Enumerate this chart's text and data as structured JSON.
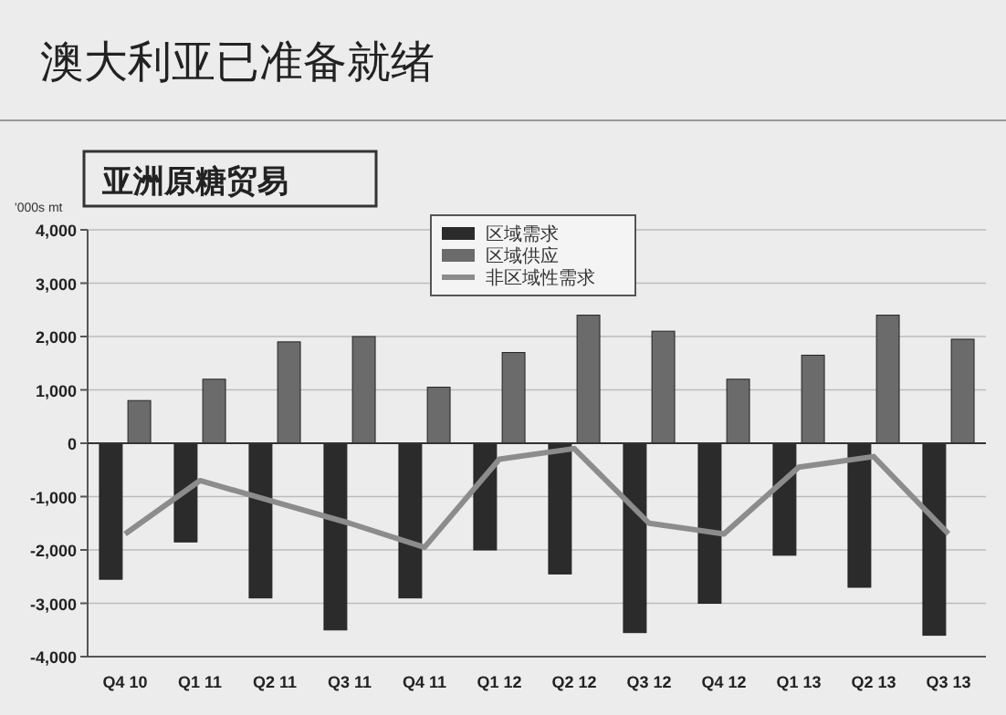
{
  "chart_data": {
    "type": "bar",
    "title": "澳大利亚已准备就绪",
    "subtitle": "亚洲原糖贸易",
    "ylabel": "'000s mt",
    "categories": [
      "Q4 10",
      "Q1 11",
      "Q2 11",
      "Q3 11",
      "Q4 11",
      "Q1 12",
      "Q2 12",
      "Q3 12",
      "Q4 12",
      "Q1 13",
      "Q2 13",
      "Q3 13"
    ],
    "series": [
      {
        "name": "区域需求",
        "color": "#2b2b2b",
        "values": [
          -2550,
          -1850,
          -2900,
          -3500,
          -2900,
          -2000,
          -2450,
          -3550,
          -3000,
          -2100,
          -2700,
          -3600
        ]
      },
      {
        "name": "区域供应",
        "color": "#6b6b6b",
        "values": [
          800,
          1200,
          1900,
          2000,
          1050,
          1700,
          2400,
          2100,
          1200,
          1650,
          2400,
          1950
        ]
      },
      {
        "name": "非区域性需求",
        "type": "line",
        "color": "#8c8c8c",
        "values": [
          -1700,
          -700,
          -1100,
          -1500,
          -1950,
          -300,
          -100,
          -1500,
          -1700,
          -450,
          -250,
          -1700
        ]
      }
    ],
    "ylim": [
      -4000,
      4000
    ],
    "yticks": [
      {
        "value": -4000,
        "label": "-4,000"
      },
      {
        "value": -3000,
        "label": "-3,000"
      },
      {
        "value": -2000,
        "label": "-2,000"
      },
      {
        "value": -1000,
        "label": "-1,000"
      },
      0,
      {
        "value": 1000,
        "label": "1,000"
      },
      {
        "value": 2000,
        "label": "2,000"
      },
      {
        "value": 3000,
        "label": "3,000"
      },
      {
        "value": 4000,
        "label": "4,000"
      }
    ],
    "grid": "y",
    "legend": "top",
    "marker": "none",
    "line_style": "solid"
  }
}
